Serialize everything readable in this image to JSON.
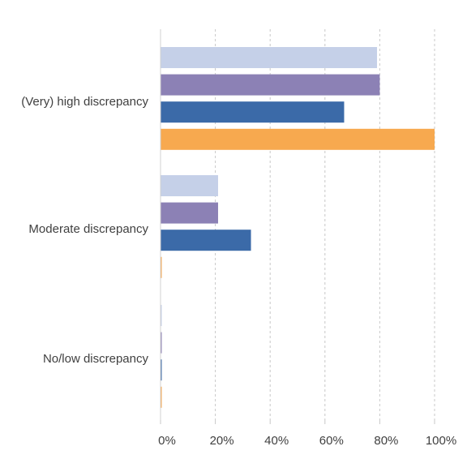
{
  "chart_data": {
    "type": "bar",
    "orientation": "horizontal",
    "categories": [
      "(Very) high discrepancy",
      "Moderate discrepancy",
      "No/low discrepancy"
    ],
    "series": [
      {
        "color": "#c5d0e8",
        "values": [
          79,
          21,
          0
        ]
      },
      {
        "color": "#8c81b5",
        "values": [
          80,
          21,
          0
        ]
      },
      {
        "color": "#3b6aa8",
        "values": [
          67,
          33,
          0
        ]
      },
      {
        "color": "#f7a94f",
        "values": [
          100,
          0,
          0
        ]
      }
    ],
    "xlim": [
      0,
      100
    ],
    "xticks": [
      "0%",
      "20%",
      "40%",
      "60%",
      "80%",
      "100%"
    ],
    "grid": "vertical dashed",
    "legend": "none",
    "title": "",
    "xlabel": "",
    "ylabel": ""
  }
}
